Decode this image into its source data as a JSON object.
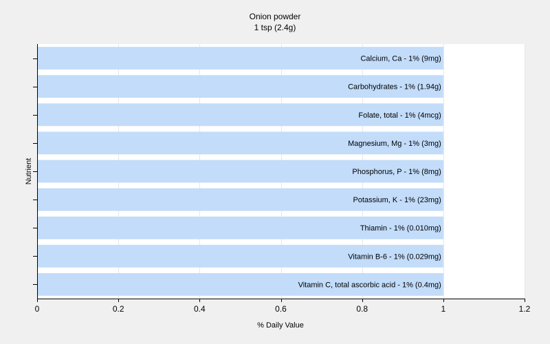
{
  "chart_data": {
    "type": "bar",
    "orientation": "horizontal",
    "title": "Onion powder",
    "subtitle": "1 tsp (2.4g)",
    "xlabel": "% Daily Value",
    "ylabel": "Nutrient",
    "xlim": [
      0,
      1.2
    ],
    "xticks": [
      "0",
      "0.2",
      "0.4",
      "0.6",
      "0.8",
      "1",
      "1.2"
    ],
    "grid": true,
    "bar_color": "#c2dcfa",
    "categories": [
      "Calcium, Ca - 1% (9mg)",
      "Carbohydrates - 1% (1.94g)",
      "Folate, total - 1% (4mcg)",
      "Magnesium, Mg - 1% (3mg)",
      "Phosphorus, P - 1% (8mg)",
      "Potassium, K - 1% (23mg)",
      "Thiamin - 1% (0.010mg)",
      "Vitamin B-6 - 1% (0.029mg)",
      "Vitamin C, total ascorbic acid - 1% (0.4mg)"
    ],
    "values": [
      1,
      1,
      1,
      1,
      1,
      1,
      1,
      1,
      1
    ]
  }
}
